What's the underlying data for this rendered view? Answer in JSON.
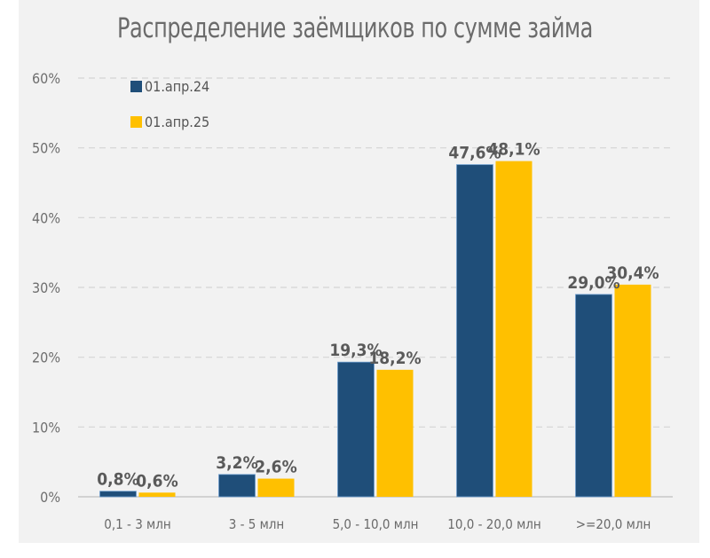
{
  "chart_data": {
    "type": "bar",
    "title": "Распределение заёмщиков по сумме займа",
    "xlabel": "",
    "ylabel": "",
    "categories": [
      "0,1 - 3 млн",
      "3 - 5 млн",
      "5,0 - 10,0 млн",
      "10,0 - 20,0 млн",
      ">=20,0 млн"
    ],
    "series": [
      {
        "name": "01.апр.24",
        "color": "#1f4e79",
        "values": [
          0.8,
          3.2,
          19.3,
          47.6,
          29.0
        ],
        "labels": [
          "0,8%",
          "3,2%",
          "19,3%",
          "47,6%",
          "29,0%"
        ]
      },
      {
        "name": "01.апр.25",
        "color": "#ffc000",
        "values": [
          0.6,
          2.6,
          18.2,
          48.1,
          30.4
        ],
        "labels": [
          "0,6%",
          "2,6%",
          "18,2%",
          "48,1%",
          "30,4%"
        ]
      }
    ],
    "ylim": [
      0,
      60
    ],
    "yticks": [
      0,
      10,
      20,
      30,
      40,
      50,
      60
    ],
    "ytick_labels": [
      "0%",
      "10%",
      "20%",
      "30%",
      "40%",
      "50%",
      "60%"
    ],
    "grid": true,
    "legend_position": "top-left"
  }
}
